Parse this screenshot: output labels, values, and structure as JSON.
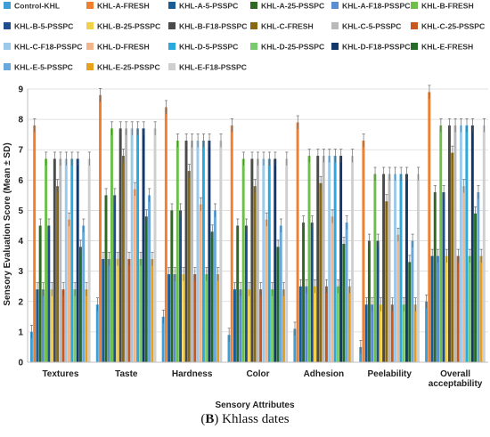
{
  "caption": {
    "prefix": "(",
    "letter": "B",
    "suffix": ") Khlass dates"
  },
  "chart_data": {
    "type": "bar",
    "xlabel": "Sensory Attributes",
    "ylabel": "Sensory Evaluation Score (Mean  ± SD)",
    "ylim": [
      0,
      9
    ],
    "yticks": [
      0,
      1,
      2,
      3,
      4,
      5,
      6,
      7,
      8,
      9
    ],
    "grid": true,
    "legend": "top",
    "categories": [
      "Textures",
      "Taste",
      "Hardness",
      "Color",
      "Adhesion",
      "Peelability",
      "Overall\nacceptability"
    ],
    "series": [
      {
        "name": "Control-KHL",
        "color": "#3d9fd6",
        "values": [
          1.0,
          1.9,
          1.5,
          0.9,
          1.1,
          0.5,
          2.0
        ]
      },
      {
        "name": "KHL-A-FRESH",
        "color": "#f08030",
        "values": [
          7.8,
          8.8,
          8.4,
          7.8,
          7.9,
          7.3,
          8.9
        ]
      },
      {
        "name": "KHL-A-5-PSSPC",
        "color": "#1c5c96",
        "values": [
          2.4,
          3.4,
          2.9,
          2.4,
          2.5,
          1.9,
          3.5
        ]
      },
      {
        "name": "KHL-A-25-PSSPC",
        "color": "#2e6a22",
        "values": [
          4.5,
          5.5,
          5.0,
          4.5,
          4.6,
          4.0,
          5.6
        ]
      },
      {
        "name": "KHL-A-F18-PSSPC",
        "color": "#5b8ed0",
        "values": [
          2.4,
          3.4,
          2.9,
          2.4,
          2.5,
          1.9,
          3.5
        ]
      },
      {
        "name": "KHL-B-FRESH",
        "color": "#6cc04a",
        "values": [
          6.7,
          7.7,
          7.3,
          6.7,
          6.8,
          6.2,
          7.8
        ]
      },
      {
        "name": "KHL-B-5-PSSPC",
        "color": "#1f4e8c",
        "values": [
          4.5,
          5.5,
          5.0,
          4.5,
          4.6,
          4.0,
          5.6
        ]
      },
      {
        "name": "KHL-B-25-PSSPC",
        "color": "#f4d04a",
        "values": [
          2.4,
          3.4,
          2.9,
          2.4,
          2.5,
          1.9,
          3.5
        ]
      },
      {
        "name": "KHL-B-F18-PSSPC",
        "color": "#4a4a4a",
        "values": [
          6.7,
          7.7,
          7.3,
          6.7,
          6.8,
          6.2,
          7.8
        ]
      },
      {
        "name": "KHL-C-FRESH",
        "color": "#8a6a10",
        "values": [
          5.8,
          6.8,
          6.3,
          5.8,
          5.9,
          5.3,
          6.9
        ]
      },
      {
        "name": "KHL-C-5-PSSPC",
        "color": "#b9b9b9",
        "values": [
          6.7,
          7.7,
          7.3,
          6.7,
          6.8,
          6.2,
          7.8
        ]
      },
      {
        "name": "KHL-C-25-PSSPC",
        "color": "#c8581e",
        "values": [
          2.4,
          3.4,
          2.9,
          2.4,
          2.5,
          1.9,
          3.5
        ]
      },
      {
        "name": "KHL-C-F18-PSSPC",
        "color": "#9cc8ea",
        "values": [
          6.7,
          7.7,
          7.3,
          6.7,
          6.8,
          6.2,
          7.8
        ]
      },
      {
        "name": "KHL-D-FRESH",
        "color": "#f3b58a",
        "values": [
          4.7,
          5.7,
          5.2,
          4.7,
          4.8,
          4.2,
          5.8
        ]
      },
      {
        "name": "KHL-D-5-PSSPC",
        "color": "#2aa8e0",
        "values": [
          6.7,
          7.7,
          7.3,
          6.7,
          6.8,
          6.2,
          7.8
        ]
      },
      {
        "name": "KHL-D-25-PSSPC",
        "color": "#79c970",
        "values": [
          2.4,
          3.4,
          2.9,
          2.4,
          2.5,
          1.9,
          3.5
        ]
      },
      {
        "name": "KHL-D-F18-PSSPC",
        "color": "#12386b",
        "values": [
          6.7,
          7.7,
          7.3,
          6.7,
          6.8,
          6.2,
          7.8
        ]
      },
      {
        "name": "KHL-E-FRESH",
        "color": "#276b2a",
        "values": [
          3.8,
          4.8,
          4.3,
          3.8,
          3.9,
          3.3,
          4.9
        ]
      },
      {
        "name": "KHL-E-5-PSSPC",
        "color": "#68a8dc",
        "values": [
          4.5,
          5.5,
          5.0,
          4.5,
          4.6,
          4.0,
          5.6
        ]
      },
      {
        "name": "KHL-E-25-PSSPC",
        "color": "#e6a01e",
        "values": [
          2.4,
          3.4,
          2.9,
          2.4,
          2.5,
          1.9,
          3.5
        ]
      },
      {
        "name": "KHL-E-F18-PSSPC",
        "color": "#cfcfcf",
        "values": [
          6.7,
          7.7,
          7.3,
          6.7,
          6.8,
          6.2,
          7.8
        ]
      }
    ]
  }
}
